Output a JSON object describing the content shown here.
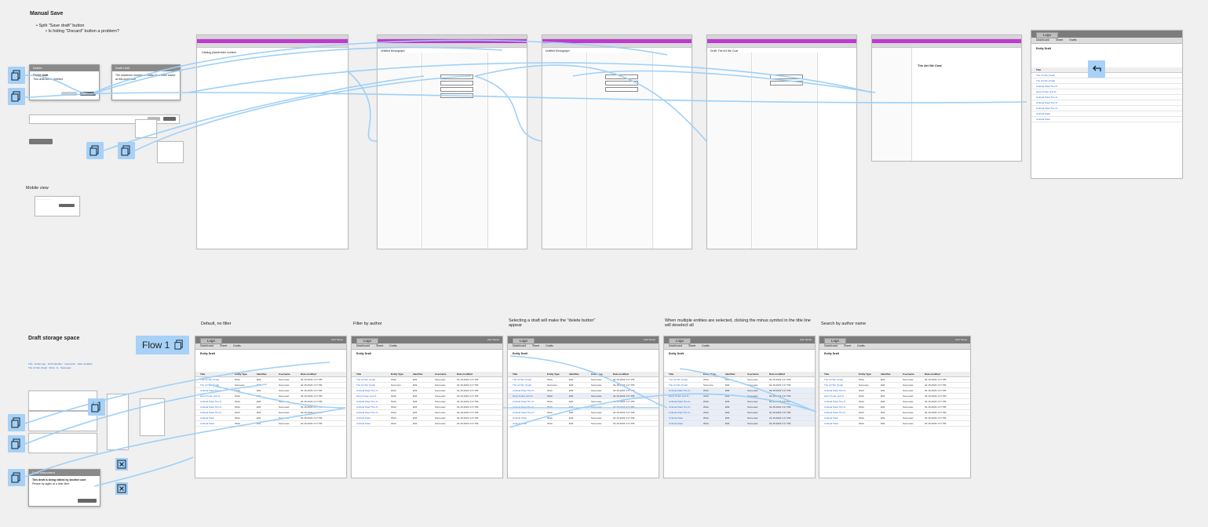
{
  "top": {
    "title": "Manual Save",
    "bullets": [
      "Split \"Save draft\" button",
      "Is hiding \"Discard\" button a problem?"
    ],
    "mobile_label": "Mobile view"
  },
  "bottom": {
    "title": "Draft storage space",
    "flow_label": "Flow 1",
    "captions": [
      "Default, no filter",
      "Filter by author",
      "Selecting a draft will make the \"delete button\" appear",
      "When multiple entities are selected, clicking the minus symbol in the title line will deselect all",
      "Search by author name"
    ]
  },
  "modals": {
    "delete_title": "Delete",
    "delete_heading": "Delete draft",
    "delete_body": "This draft will be deleted.",
    "limit_title": "Draft Limit",
    "limit_body": "The maximum number of drafts have been saved at this workplace",
    "concurrent_title": "Draft concurrent",
    "concurrent_heading": "This draft is being edited by another user",
    "concurrent_body": "Please try again at a later time."
  },
  "app": {
    "logo": "Logo",
    "user": "User Name",
    "tabs": [
      "Dashboard",
      "Sheet",
      "Drafts"
    ],
    "page_title": "Entity Draft",
    "columns": [
      "Title",
      "Entity Type",
      "Identifier",
      "Username",
      "Date modified"
    ],
    "rows": [
      [
        "The Art Wo (Coal)",
        "Work",
        "E03",
        "Someuser",
        "02-15-2023 4:17 PM"
      ],
      [
        "The Art Wo (Coal)",
        "Someone",
        "E03",
        "Someuser",
        "02-15-2023 4:17 PM"
      ],
      [
        "Ambela Patel The D...",
        "Work",
        "E03",
        "Someuser",
        "02-15-2023 4:17 PM"
      ],
      [
        "Harry Potter and th...",
        "Work",
        "E03",
        "Someuser",
        "02-15-2023 4:17 PM"
      ],
      [
        "Ambela Patel The D...",
        "Work",
        "E03",
        "Someuser",
        "02-15-2023 4:17 PM"
      ],
      [
        "Ambela Patel The D...",
        "Work",
        "E03",
        "Someuser",
        "02-15-2023 4:17 PM"
      ],
      [
        "Ambela Patel The D...",
        "Work",
        "E03",
        "Someuser",
        "02-15-2023 4:17 PM"
      ],
      [
        "Ambela Patel",
        "Work",
        "E03",
        "Someuser",
        "02-15-2023 4:17 PM"
      ],
      [
        "Ambela Patel",
        "Work",
        "E03",
        "Someuser",
        "02-15-2023 4:17 PM"
      ]
    ],
    "editor_titles": [
      "Untitled Monograph",
      "Draft: The Art We Coal"
    ],
    "doc_title": "The Art We Coal"
  },
  "colors": {
    "connector": "#9fd0f7",
    "tile": "#a7d1f6",
    "purple": "#c03ad1",
    "link": "#2a6ad8"
  }
}
